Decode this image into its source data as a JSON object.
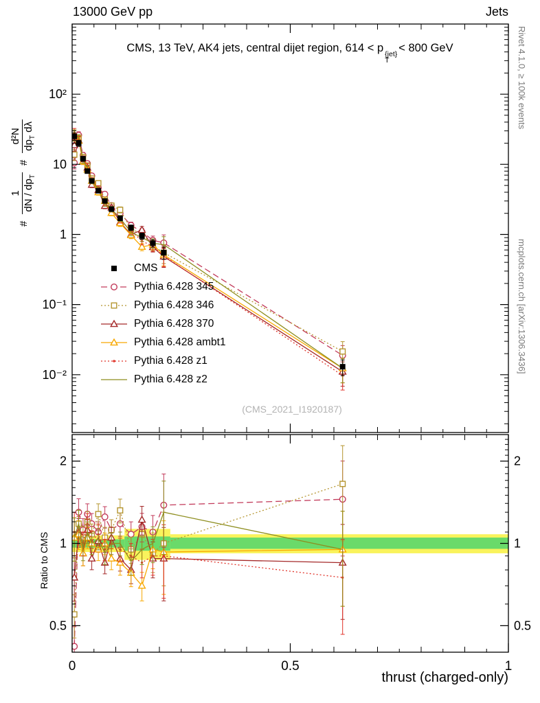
{
  "header": {
    "left": "13000 GeV pp",
    "right": "Jets"
  },
  "title": {
    "pre": "CMS, 13 TeV, AK4 jets, central dijet region, 614 < p",
    "sup": "{jet}",
    "sub": "T",
    "post": "< 800 GeV"
  },
  "main_ylabel": {
    "hash1": "#",
    "f1_num": "1",
    "f1_den_pre": "dN / dp",
    "f1_den_sub": "T",
    "hash2": "#",
    "f2_num": "d²N",
    "f2_den_pre": "dp",
    "f2_den_sub": "T",
    "f2_den_post": " dλ"
  },
  "ratio_ylabel": "Ratio to CMS",
  "xlabel": "thrust (charged-only)",
  "watermark": "(CMS_2021_I1920187)",
  "right_margin": {
    "top": "Rivet 4.1.0, ≥ 100k events",
    "bottom": "mcplots.cern.ch [arXiv:1306.3436]"
  },
  "chart_data": {
    "type": "scatter",
    "title": "CMS, 13 TeV, AK4 jets, central dijet region, 614 < pT{jet} < 800 GeV",
    "xlabel": "thrust (charged-only)",
    "legend_position": "middle-left",
    "grid": false,
    "xlim": [
      0,
      1
    ],
    "x_ticks": {
      "major": [
        0,
        0.5,
        1
      ],
      "labels": [
        "0",
        "0.5",
        "1"
      ]
    },
    "main": {
      "scale": "log",
      "ylim": [
        0.0015,
        1000
      ],
      "yticks": [
        {
          "v": 100,
          "t": "10²"
        },
        {
          "v": 10,
          "t": "10"
        },
        {
          "v": 1,
          "t": "1"
        },
        {
          "v": 0.1,
          "t": "10⁻¹"
        },
        {
          "v": 0.01,
          "t": "10⁻²"
        }
      ]
    },
    "ratio": {
      "scale": "log",
      "ylim": [
        0.4,
        2.5
      ],
      "yticks": [
        {
          "v": 2,
          "t": "2"
        },
        {
          "v": 1,
          "t": "1"
        },
        {
          "v": 0.5,
          "t": "0.5"
        }
      ]
    },
    "x": [
      0.005,
      0.015,
      0.025,
      0.035,
      0.045,
      0.06,
      0.075,
      0.09,
      0.11,
      0.135,
      0.16,
      0.185,
      0.21,
      0.62
    ],
    "cms": {
      "label": "CMS",
      "color": "#000000",
      "marker": "square-filled",
      "line": "none",
      "y": [
        25,
        20,
        12,
        8,
        5.8,
        4.2,
        3.0,
        2.3,
        1.7,
        1.25,
        0.95,
        0.75,
        0.55,
        0.013
      ],
      "yerr_frac": [
        0.12,
        0.1,
        0.08,
        0.07,
        0.07,
        0.07,
        0.07,
        0.07,
        0.08,
        0.09,
        0.1,
        0.12,
        0.2,
        0.25
      ]
    },
    "ratio_err_frac": [
      0.18,
      0.12,
      0.1,
      0.09,
      0.09,
      0.09,
      0.09,
      0.09,
      0.1,
      0.11,
      0.12,
      0.15,
      0.3,
      0.38
    ],
    "series": [
      {
        "label": "Pythia 6.428 345",
        "slug": "345",
        "color": "#c23a5a",
        "line": "dashed",
        "marker": "circle",
        "ratio": [
          0.42,
          1.3,
          1.12,
          1.28,
          1.18,
          1.1,
          1.25,
          1.12,
          1.18,
          1.08,
          1.15,
          1.1,
          1.38,
          1.45
        ]
      },
      {
        "label": "Pythia 6.428 346",
        "slug": "346",
        "color": "#b5952f",
        "line": "dotted",
        "marker": "square",
        "ratio": [
          0.55,
          1.18,
          1.05,
          1.2,
          1.08,
          1.28,
          1.05,
          1.12,
          1.32,
          0.95,
          1.08,
          0.92,
          1.0,
          1.65
        ]
      },
      {
        "label": "Pythia 6.428 370",
        "slug": "370",
        "color": "#a42828",
        "line": "solid",
        "marker": "triangle",
        "ratio": [
          0.75,
          1.1,
          0.92,
          1.12,
          0.88,
          1.02,
          0.85,
          1.05,
          0.88,
          0.8,
          1.22,
          0.88,
          0.88,
          0.85
        ]
      },
      {
        "label": "Pythia 6.428 ambt1",
        "slug": "ambt1",
        "color": "#f8a800",
        "line": "solid",
        "marker": "triangle",
        "ratio": [
          1.05,
          1.08,
          0.92,
          1.05,
          1.0,
          0.95,
          1.0,
          0.88,
          0.85,
          0.78,
          0.7,
          0.95,
          0.93,
          0.95
        ]
      },
      {
        "label": "Pythia 6.428 z1",
        "slug": "z1",
        "color": "#e03228",
        "line": "dotted",
        "marker": "dot",
        "ratio": [
          1.1,
          1.12,
          1.0,
          1.18,
          1.02,
          1.08,
          0.95,
          1.0,
          0.95,
          0.9,
          0.85,
          0.9,
          0.9,
          0.75
        ]
      },
      {
        "label": "Pythia 6.428 z2",
        "slug": "z2",
        "color": "#8e8e1f",
        "line": "solid",
        "marker": "none",
        "ratio": [
          1.05,
          1.18,
          0.96,
          1.1,
          1.0,
          1.04,
          0.92,
          1.0,
          1.0,
          0.86,
          0.95,
          1.0,
          1.3,
          0.95
        ]
      }
    ],
    "bands": [
      {
        "name": "total-uncertainty",
        "color": "#f9f35c",
        "segments": [
          [
            0,
            0.12,
            0.93,
            1.07
          ],
          [
            0.12,
            0.225,
            0.87,
            1.13
          ],
          [
            0.225,
            1,
            0.92,
            1.08
          ]
        ]
      },
      {
        "name": "stat-uncertainty",
        "color": "#6ada6a",
        "segments": [
          [
            0,
            0.12,
            0.965,
            1.035
          ],
          [
            0.12,
            0.225,
            0.94,
            1.06
          ],
          [
            0.225,
            1,
            0.955,
            1.05
          ]
        ]
      }
    ]
  }
}
